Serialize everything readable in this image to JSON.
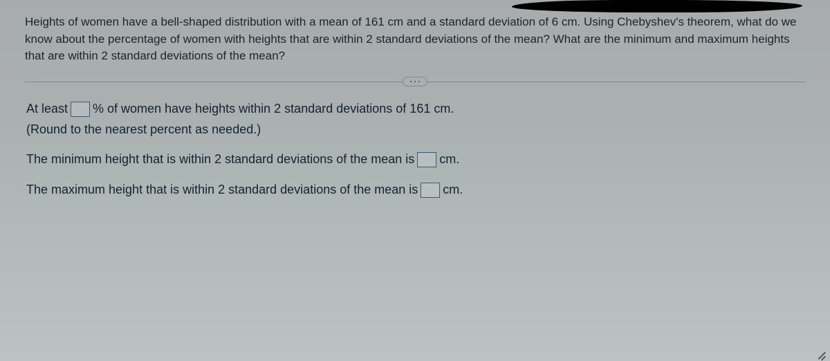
{
  "question": "Heights of women have a bell-shaped distribution with a mean of 161 cm and a standard deviation of 6 cm. Using Chebyshev's theorem, what do we know about the percentage of women with heights that are within 2 standard deviations of the mean? What are the minimum and maximum heights that are within 2 standard deviations of the mean?",
  "answers": {
    "line1_pre": "At least ",
    "line1_post": "% of women have heights within 2 standard deviations of 161 cm.",
    "hint": "(Round to the nearest percent as needed.)",
    "line2_pre": "The minimum height that is within 2 standard deviations of the mean is ",
    "line2_post": " cm.",
    "line3_pre": "The maximum height that is within 2 standard deviations of the mean is ",
    "line3_post": " cm.",
    "input1": "",
    "input2": "",
    "input3": ""
  }
}
